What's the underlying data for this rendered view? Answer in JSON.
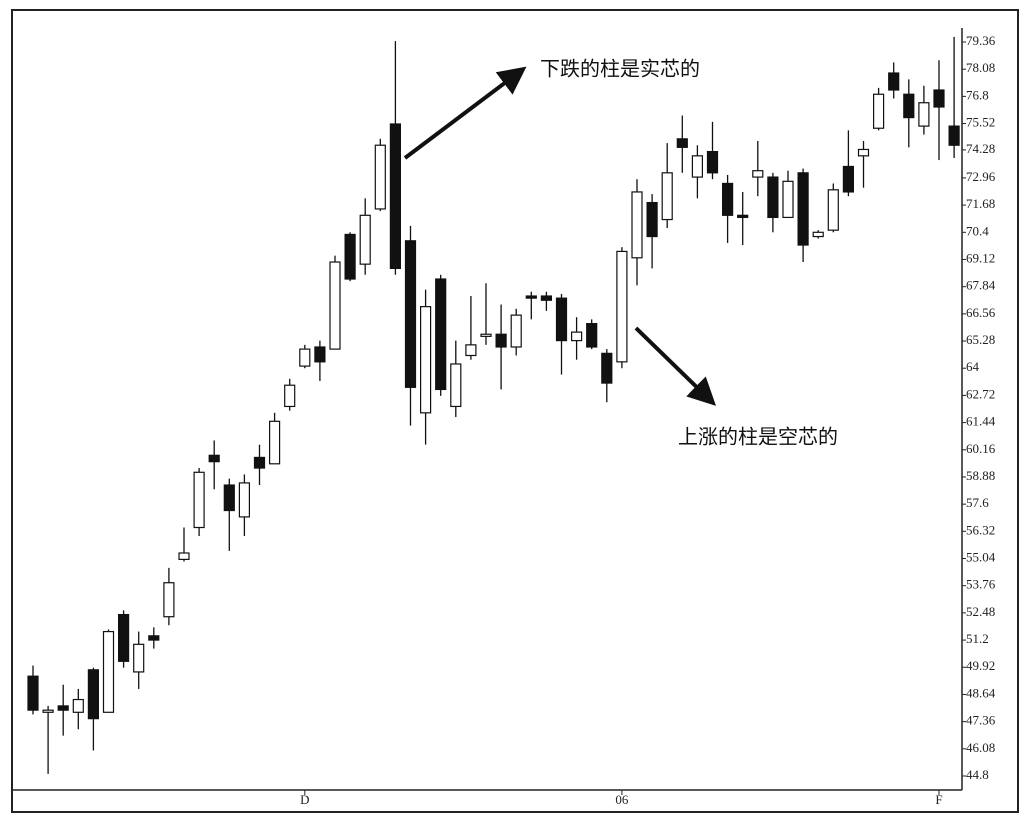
{
  "chart_data": {
    "type": "candlestick",
    "categories": [
      null,
      null,
      null,
      null,
      null,
      null,
      null,
      null,
      null,
      null,
      null,
      null,
      null,
      null,
      null,
      null,
      null,
      null,
      "D",
      null,
      null,
      null,
      null,
      null,
      null,
      null,
      null,
      null,
      null,
      null,
      null,
      null,
      null,
      null,
      null,
      null,
      null,
      null,
      null,
      "06",
      null,
      null,
      null,
      null,
      null,
      null,
      null,
      null,
      null,
      null,
      null,
      null,
      null,
      null,
      null,
      null,
      null,
      null,
      null,
      null,
      "F",
      null
    ],
    "open": [
      49.5,
      47.8,
      48.1,
      47.8,
      49.8,
      47.8,
      52.4,
      49.7,
      51.4,
      52.3,
      55.0,
      56.5,
      59.9,
      58.5,
      57.0,
      59.8,
      59.5,
      62.2,
      64.1,
      65.0,
      64.9,
      70.3,
      68.9,
      71.5,
      75.5,
      70.0,
      61.9,
      68.2,
      62.2,
      64.6,
      65.5,
      65.6,
      65.0,
      67.4,
      67.4,
      67.3,
      65.3,
      66.1,
      64.7,
      64.3,
      69.2,
      71.8,
      71.0,
      74.8,
      73.0,
      74.2,
      72.7,
      71.2,
      73.0,
      73.0,
      71.1,
      73.2,
      70.2,
      70.5,
      73.5,
      74.0,
      75.3,
      77.9,
      76.9,
      75.4,
      77.1,
      75.4
    ],
    "high": [
      50.0,
      48.1,
      49.1,
      48.9,
      49.9,
      51.7,
      52.6,
      51.6,
      51.8,
      54.6,
      56.5,
      59.3,
      60.6,
      58.8,
      59.0,
      60.4,
      61.9,
      63.5,
      65.1,
      65.3,
      69.3,
      70.4,
      72.0,
      74.8,
      79.4,
      70.7,
      67.7,
      68.4,
      65.3,
      67.4,
      68.0,
      67.0,
      66.8,
      67.6,
      67.6,
      67.5,
      66.4,
      66.3,
      64.9,
      69.7,
      72.9,
      72.2,
      74.6,
      75.9,
      74.5,
      75.6,
      73.1,
      72.3,
      74.7,
      73.2,
      73.3,
      73.4,
      70.5,
      72.7,
      75.2,
      74.7,
      77.2,
      78.4,
      77.6,
      77.3,
      78.5,
      79.6
    ],
    "low": [
      47.7,
      44.9,
      46.7,
      47.0,
      46.0,
      47.8,
      49.9,
      48.9,
      50.8,
      51.9,
      54.9,
      56.1,
      58.3,
      55.4,
      56.1,
      58.5,
      59.5,
      62.0,
      64.0,
      63.4,
      64.9,
      68.1,
      68.4,
      71.4,
      68.4,
      61.3,
      60.4,
      62.7,
      61.7,
      64.4,
      65.1,
      63.0,
      64.6,
      66.3,
      66.7,
      63.7,
      64.4,
      64.9,
      62.4,
      64.0,
      67.9,
      68.7,
      70.6,
      73.2,
      72.0,
      72.9,
      69.9,
      69.8,
      72.1,
      70.4,
      71.1,
      69.0,
      70.1,
      70.4,
      72.1,
      72.5,
      75.2,
      76.7,
      74.4,
      75.0,
      73.8,
      73.9
    ],
    "close": [
      47.9,
      47.9,
      47.9,
      48.4,
      47.5,
      51.6,
      50.2,
      51.0,
      51.2,
      53.9,
      55.3,
      59.1,
      59.6,
      57.3,
      58.6,
      59.3,
      61.5,
      63.2,
      64.9,
      64.3,
      69.0,
      68.2,
      71.2,
      74.5,
      68.7,
      63.1,
      66.9,
      63.0,
      64.2,
      65.1,
      65.6,
      65.0,
      66.5,
      67.3,
      67.2,
      65.3,
      65.7,
      65.0,
      63.3,
      69.5,
      72.3,
      70.2,
      73.2,
      74.4,
      74.0,
      73.2,
      71.2,
      71.1,
      73.3,
      71.1,
      72.8,
      69.8,
      70.4,
      72.4,
      72.3,
      74.3,
      76.9,
      77.1,
      75.8,
      76.5,
      76.3,
      74.5
    ],
    "ylim": [
      44.8,
      79.36
    ],
    "yticks": [
      44.8,
      46.08,
      47.36,
      48.64,
      49.92,
      51.2,
      52.48,
      53.76,
      55.04,
      56.32,
      57.6,
      58.88,
      60.16,
      61.44,
      62.72,
      64,
      65.28,
      66.56,
      67.84,
      69.12,
      70.4,
      71.68,
      72.96,
      74.28,
      75.52,
      76.8,
      78.08,
      79.36
    ],
    "annotations": [
      "下跌的柱是实芯的",
      "上涨的柱是空芯的"
    ]
  }
}
